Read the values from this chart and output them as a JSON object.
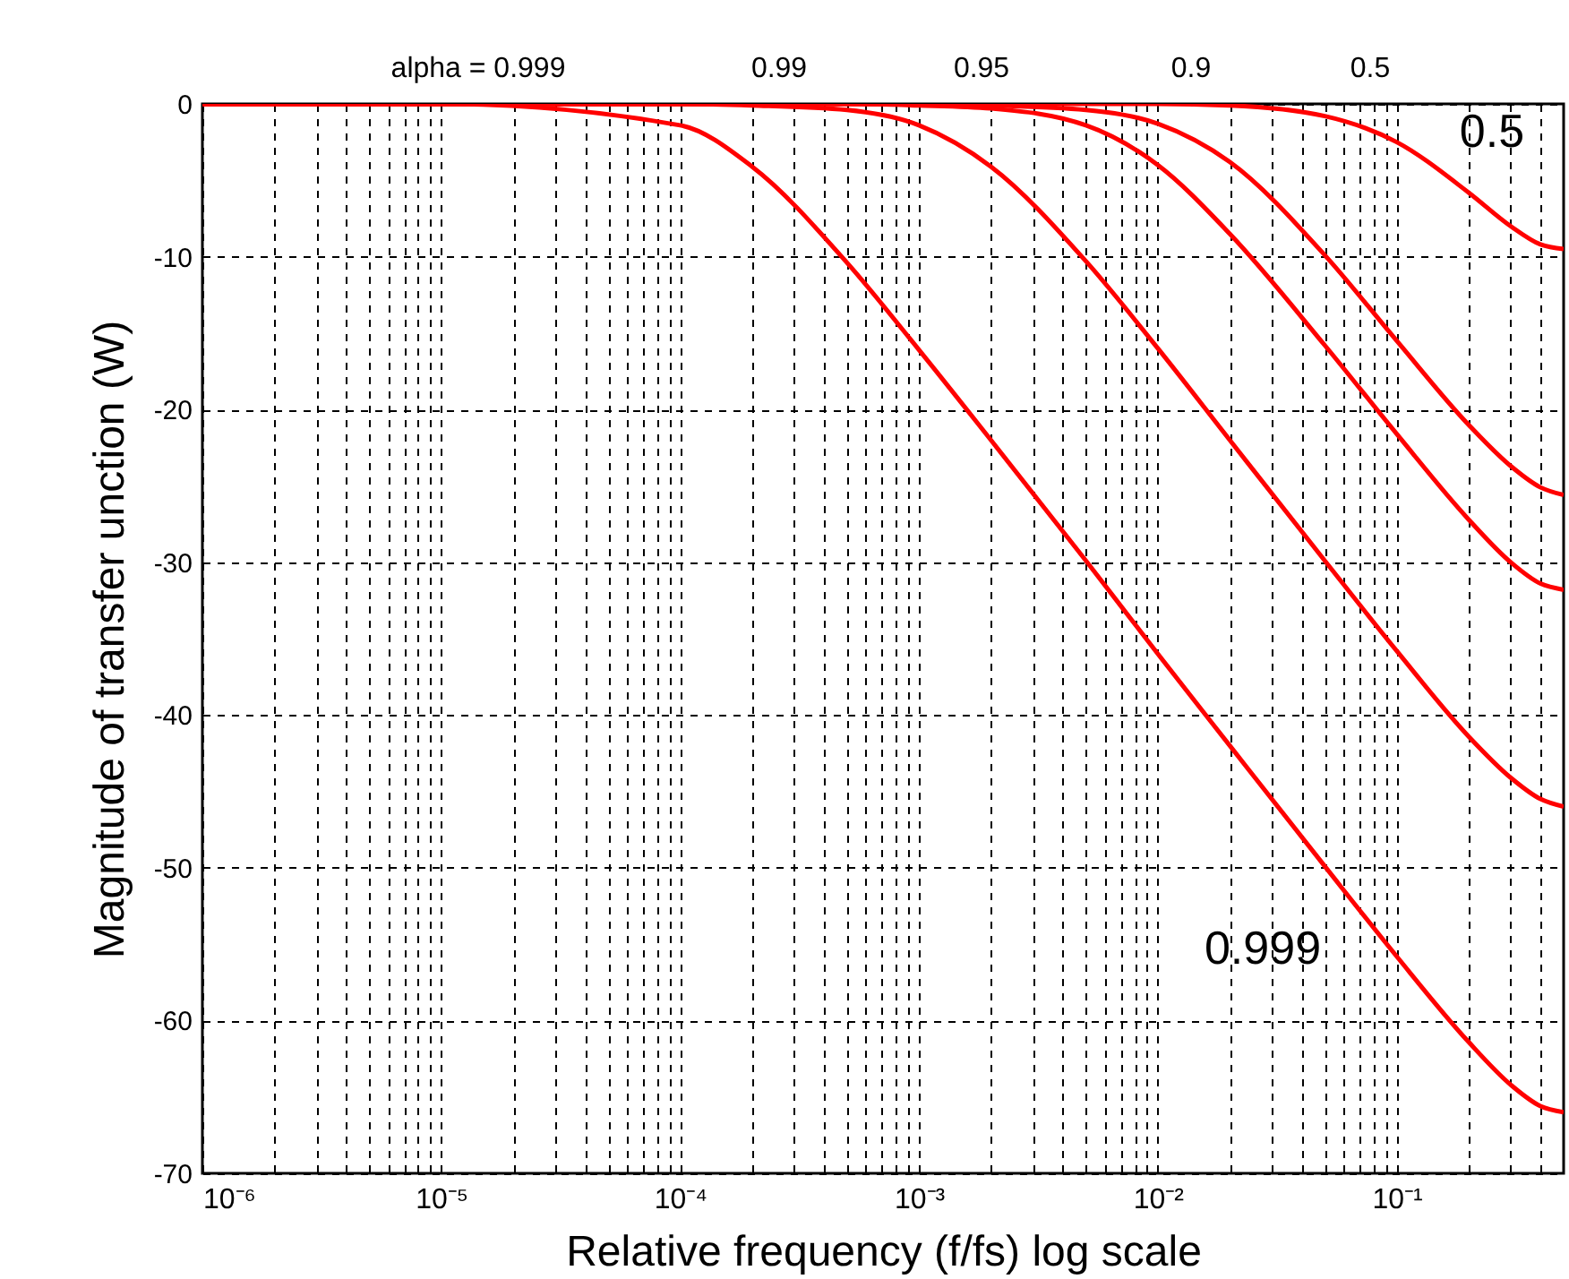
{
  "chart_data": {
    "type": "line",
    "xlabel": "Relative frequency (f/fs) log scale",
    "ylabel": "Magnitude of transfer unction (W)",
    "x": [
      1e-06,
      1e-05,
      0.0001,
      0.0002,
      0.0005,
      0.001,
      0.002,
      0.005,
      0.01,
      0.02,
      0.05,
      0.1,
      0.2,
      0.3,
      0.4,
      0.5
    ],
    "series": [
      {
        "color": "#ff0000",
        "values": [
          0,
          0,
          -1.4,
          -4.1,
          -10.4,
          -16.1,
          -22,
          -29.9,
          -36,
          -42,
          -49.9,
          -55.8,
          -61.4,
          -64.2,
          -65.6,
          -66
        ]
      },
      {
        "color": "#ff0000",
        "values": [
          0,
          0,
          0,
          -0.1,
          -0.4,
          -1.4,
          -4.1,
          -10.3,
          -16,
          -22,
          -29.9,
          -35.8,
          -41.4,
          -44.1,
          -45.5,
          -46
        ]
      },
      {
        "color": "#ff0000",
        "values": [
          0,
          0,
          0,
          0,
          0,
          -0.1,
          -0.3,
          -1.4,
          -4,
          -8.5,
          -15.8,
          -21.6,
          -27.2,
          -30,
          -31.4,
          -31.8
        ]
      },
      {
        "color": "#ff0000",
        "values": [
          0,
          0,
          0,
          0,
          0,
          0,
          -0.1,
          -0.4,
          -1.3,
          -3.8,
          -9.9,
          -15.5,
          -21,
          -23.7,
          -25.1,
          -25.6
        ]
      },
      {
        "color": "#ff0000",
        "values": [
          0,
          0,
          0,
          0,
          0,
          0,
          0,
          0,
          0,
          -0.1,
          -0.8,
          -2.5,
          -5.8,
          -8,
          -9.2,
          -9.5
        ]
      }
    ],
    "annotations": [
      "alpha = 0.999",
      "0.99",
      "0.95",
      "0.9",
      "0.5",
      "0.5",
      "0.999"
    ],
    "xlim": [
      1e-06,
      0.5
    ],
    "ylim": [
      -70,
      0
    ],
    "log": "x",
    "grid": true,
    "legend": false,
    "yticks": [
      -70,
      -60,
      -50,
      -40,
      -30,
      -20,
      -10,
      0
    ],
    "xticks": [
      {
        "value": 1e-06,
        "label": "10⁻⁶"
      },
      {
        "value": 2e-06,
        "label": null
      },
      {
        "value": 3e-06,
        "label": null
      },
      {
        "value": 4e-06,
        "label": null
      },
      {
        "value": 5e-06,
        "label": null
      },
      {
        "value": 6e-06,
        "label": null
      },
      {
        "value": 7e-06,
        "label": null
      },
      {
        "value": 8e-06,
        "label": null
      },
      {
        "value": 9e-06,
        "label": null
      },
      {
        "value": 1e-05,
        "label": "10⁻⁵"
      },
      {
        "value": 2e-05,
        "label": null
      },
      {
        "value": 3e-05,
        "label": null
      },
      {
        "value": 4e-05,
        "label": null
      },
      {
        "value": 5e-05,
        "label": null
      },
      {
        "value": 6e-05,
        "label": null
      },
      {
        "value": 7e-05,
        "label": null
      },
      {
        "value": 8e-05,
        "label": null
      },
      {
        "value": 9e-05,
        "label": null
      },
      {
        "value": 0.0001,
        "label": "10⁻⁴"
      },
      {
        "value": 0.0002,
        "label": null
      },
      {
        "value": 0.0003,
        "label": null
      },
      {
        "value": 0.0004,
        "label": null
      },
      {
        "value": 0.0005,
        "label": null
      },
      {
        "value": 0.0006,
        "label": null
      },
      {
        "value": 0.0007,
        "label": null
      },
      {
        "value": 0.0008,
        "label": null
      },
      {
        "value": 0.0009,
        "label": null
      },
      {
        "value": 0.001,
        "label": "10⁻³"
      },
      {
        "value": 0.002,
        "label": null
      },
      {
        "value": 0.003,
        "label": null
      },
      {
        "value": 0.004,
        "label": null
      },
      {
        "value": 0.005,
        "label": null
      },
      {
        "value": 0.006,
        "label": null
      },
      {
        "value": 0.007,
        "label": null
      },
      {
        "value": 0.008,
        "label": null
      },
      {
        "value": 0.009,
        "label": null
      },
      {
        "value": 0.01,
        "label": "10⁻²"
      },
      {
        "value": 0.02,
        "label": null
      },
      {
        "value": 0.03,
        "label": null
      },
      {
        "value": 0.04,
        "label": null
      },
      {
        "value": 0.05,
        "label": null
      },
      {
        "value": 0.06,
        "label": null
      },
      {
        "value": 0.07,
        "label": null
      },
      {
        "value": 0.08,
        "label": null
      },
      {
        "value": 0.09,
        "label": null
      },
      {
        "value": 0.1,
        "label": "10⁻¹"
      },
      {
        "value": 0.2,
        "label": null
      },
      {
        "value": 0.3,
        "label": null
      },
      {
        "value": 0.4,
        "label": null
      }
    ]
  }
}
